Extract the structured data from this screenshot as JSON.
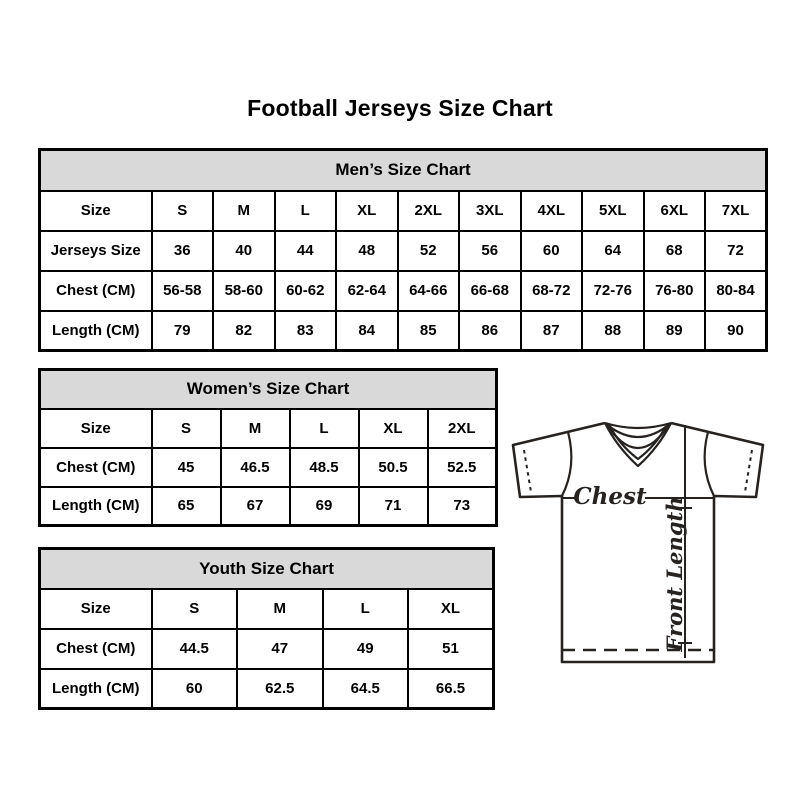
{
  "page": {
    "title": "Football Jerseys Size Chart"
  },
  "colors": {
    "background": "#ffffff",
    "table_header_bg": "#d9d9d9",
    "table_border": "#000000",
    "text": "#000000",
    "diagram_line": "#262220"
  },
  "tables": [
    {
      "id": "mens",
      "title": "Men’s Size Chart",
      "rows": [
        [
          "Size",
          "S",
          "M",
          "L",
          "XL",
          "2XL",
          "3XL",
          "4XL",
          "5XL",
          "6XL",
          "7XL"
        ],
        [
          "Jerseys Size",
          "36",
          "40",
          "44",
          "48",
          "52",
          "56",
          "60",
          "64",
          "68",
          "72"
        ],
        [
          "Chest (CM)",
          "56-58",
          "58-60",
          "60-62",
          "62-64",
          "64-66",
          "66-68",
          "68-72",
          "72-76",
          "76-80",
          "80-84"
        ],
        [
          "Length (CM)",
          "79",
          "82",
          "83",
          "84",
          "85",
          "86",
          "87",
          "88",
          "89",
          "90"
        ]
      ]
    },
    {
      "id": "womens",
      "title": "Women’s Size Chart",
      "rows": [
        [
          "Size",
          "S",
          "M",
          "L",
          "XL",
          "2XL"
        ],
        [
          "Chest (CM)",
          "45",
          "46.5",
          "48.5",
          "50.5",
          "52.5"
        ],
        [
          "Length (CM)",
          "65",
          "67",
          "69",
          "71",
          "73"
        ]
      ]
    },
    {
      "id": "youth",
      "title": "Youth Size Chart",
      "rows": [
        [
          "Size",
          "S",
          "M",
          "L",
          "XL"
        ],
        [
          "Chest (CM)",
          "44.5",
          "47",
          "49",
          "51"
        ],
        [
          "Length (CM)",
          "60",
          "62.5",
          "64.5",
          "66.5"
        ]
      ]
    }
  ],
  "diagram": {
    "chest_label": "Chest",
    "front_length_label": "Front Length"
  }
}
